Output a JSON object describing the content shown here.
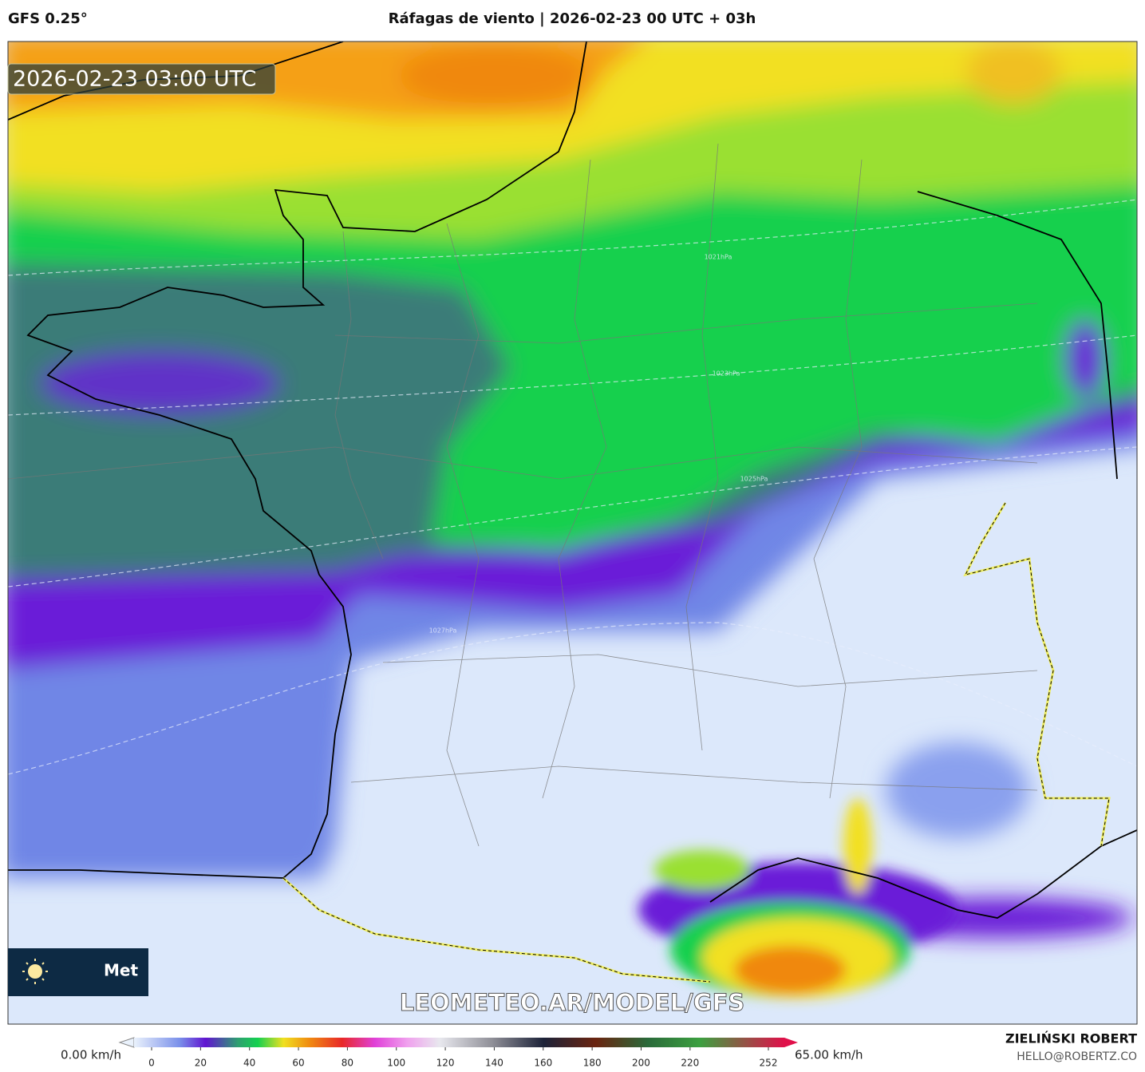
{
  "header": {
    "model": "GFS 0.25°",
    "title": "Ráfagas de viento | 2026-02-23 00 UTC + 03h"
  },
  "map": {
    "timestamp": "2026-02-23 03:00 UTC",
    "watermark": "LEOMETEO.AR/MODEL/GFS",
    "logo_text": "Met",
    "isobars": [
      "1021hPa",
      "1023hPa",
      "1025hPa",
      "1027hPa"
    ]
  },
  "colorbar": {
    "min_label": "0.00 km/h",
    "max_label": "65.00 km/h",
    "ticks": [
      0,
      20,
      40,
      60,
      80,
      100,
      120,
      140,
      160,
      180,
      200,
      220,
      252
    ]
  },
  "footer": {
    "author": "ZIELIŃSKI ROBERT",
    "contact": "HELLO@ROBERTZ.CO"
  }
}
